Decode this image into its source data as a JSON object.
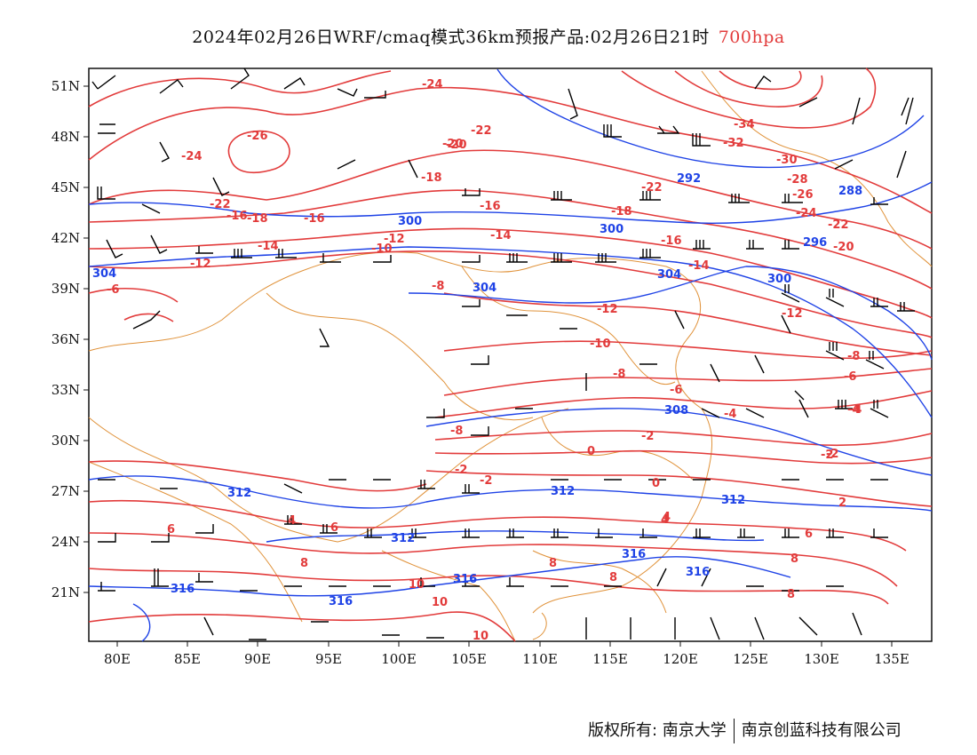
{
  "title": {
    "main": "2024年02月26日WRF/cmaq模式36km预报产品:02月26日21时",
    "level": "700hpa"
  },
  "colors": {
    "temperature": "#e23b3b",
    "height": "#1f43e6",
    "wind": "#000000",
    "boundary": "#e0923a"
  },
  "map": {
    "lat_labels": [
      "51N",
      "48N",
      "45N",
      "42N",
      "39N",
      "36N",
      "33N",
      "30N",
      "27N",
      "24N",
      "21N"
    ],
    "lon_labels": [
      "80E",
      "85E",
      "90E",
      "95E",
      "100E",
      "105E",
      "110E",
      "115E",
      "120E",
      "125E",
      "130E",
      "135E"
    ],
    "temperature_labels": [
      "-24",
      "-26",
      "-24",
      "-22",
      "-18",
      "-16",
      "-20",
      "-22",
      "-18",
      "-16",
      "-14",
      "-12",
      "-10",
      "-12",
      "-14",
      "-16",
      "-18",
      "-20",
      "-22",
      "-24",
      "-26",
      "-28",
      "-30",
      "-32",
      "-34",
      "-22",
      "-14",
      "-12",
      "-10",
      "-8",
      "-6",
      "-4",
      "-2",
      "0",
      "-2",
      "-4",
      "-6",
      "-8",
      "-2",
      "0",
      "2",
      "4",
      "6",
      "8",
      "10",
      "-8",
      "-6",
      "-4",
      "-2",
      "-2",
      "4",
      "4",
      "6",
      "6",
      "8",
      "8",
      "10",
      "10",
      "8",
      "8",
      "-12",
      "-20",
      "-8",
      "-16"
    ],
    "height_labels": [
      "292",
      "288",
      "296",
      "300",
      "300",
      "304",
      "304",
      "300",
      "304",
      "308",
      "312",
      "312",
      "312",
      "312",
      "316",
      "316",
      "316",
      "316",
      "316"
    ],
    "footer": {
      "copyright": "版权所有: 南京大学",
      "company": "南京创蓝科技有限公司"
    }
  }
}
